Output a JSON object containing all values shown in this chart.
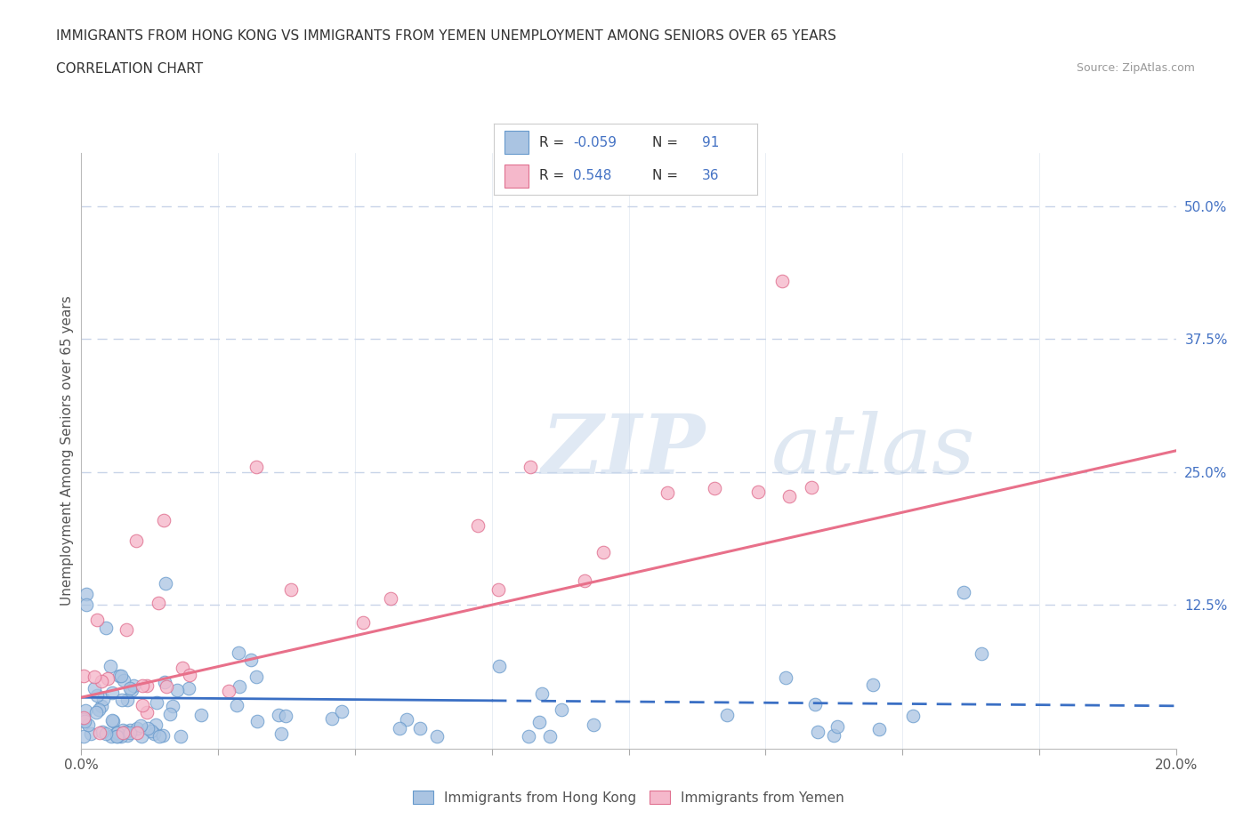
{
  "title_line1": "IMMIGRANTS FROM HONG KONG VS IMMIGRANTS FROM YEMEN UNEMPLOYMENT AMONG SENIORS OVER 65 YEARS",
  "title_line2": "CORRELATION CHART",
  "source_text": "Source: ZipAtlas.com",
  "ylabel": "Unemployment Among Seniors over 65 years",
  "xlim": [
    0.0,
    0.2
  ],
  "ylim": [
    -0.01,
    0.55
  ],
  "hk_color": "#aac4e2",
  "hk_edge_color": "#6699cc",
  "yemen_color": "#f5b8cb",
  "yemen_edge_color": "#e07090",
  "hk_R": -0.059,
  "hk_N": 91,
  "yemen_R": 0.548,
  "yemen_N": 36,
  "hk_line_color": "#3a6fc4",
  "yemen_line_color": "#e8708a",
  "watermark_color": "#d8e4f0",
  "background_color": "#ffffff",
  "grid_color": "#c8d4e8",
  "legend_text_color": "#4472c4",
  "legend_label_color": "#444444"
}
